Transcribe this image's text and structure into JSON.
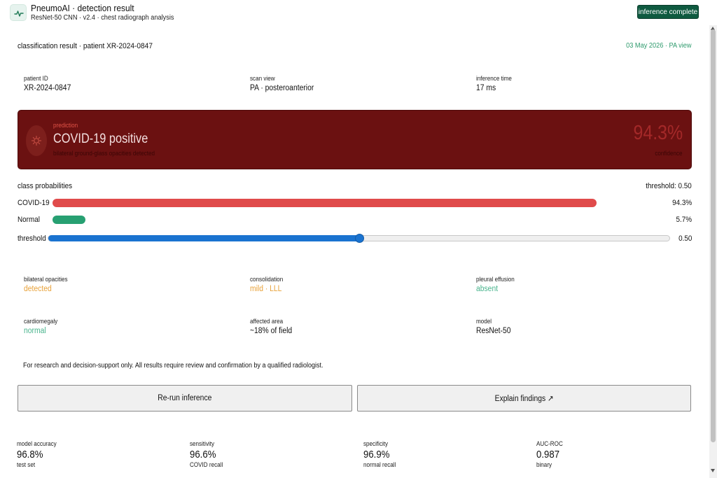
{
  "header": {
    "title": "PneumoAI · detection result",
    "subtitle": "ResNet-50 CNN · v2.4 · chest radiograph analysis",
    "status": "inference complete",
    "logo_icon": "pulse-icon"
  },
  "section": {
    "title": "classification result · patient XR-2024-0847",
    "date": "03 May 2026 · PA view"
  },
  "info": [
    {
      "label": "patient ID",
      "value": "XR-2024-0847"
    },
    {
      "label": "scan view",
      "value": "PA · posteroanterior"
    },
    {
      "label": "inference time",
      "value": "17 ms"
    }
  ],
  "prediction": {
    "label": "prediction",
    "value": "COVID-19 positive",
    "description": "bilateral ground-glass opacities detected",
    "confidence": "94.3%",
    "confidence_label": "confidence",
    "icon": "virus-icon"
  },
  "probabilities": {
    "title": "class probabilities",
    "threshold_label": "threshold: 0.50",
    "rows": [
      {
        "label": "COVID-19",
        "value": "94.3%",
        "fraction": 0.943,
        "color": "#e04b4b"
      },
      {
        "label": "Normal",
        "value": "5.7%",
        "fraction": 0.057,
        "color": "#27a072"
      }
    ],
    "slider": {
      "label": "threshold",
      "value": "0.50",
      "fraction": 0.5,
      "color": "#1a73d0"
    }
  },
  "findings": [
    {
      "label": "bilateral opacities",
      "value": "detected",
      "color": "#e8a23a"
    },
    {
      "label": "consolidation",
      "value": "mild · LLL",
      "color": "#e8a23a"
    },
    {
      "label": "pleural effusion",
      "value": "absent",
      "color": "#49b48d"
    },
    {
      "label": "cardiomegaly",
      "value": "normal",
      "color": "#49b48d"
    },
    {
      "label": "affected area",
      "value": "~18% of field",
      "color": "#111111"
    },
    {
      "label": "model",
      "value": "ResNet-50",
      "color": "#111111"
    }
  ],
  "disclaimer": "For research and decision-support only. All results require review and confirmation by a qualified radiologist.",
  "actions": {
    "rerun_label": "Re-run inference",
    "explain_label": "Explain findings ↗"
  },
  "metrics": [
    {
      "label": "model accuracy",
      "value": "96.8%",
      "sub": "test set"
    },
    {
      "label": "sensitivity",
      "value": "96.6%",
      "sub": "COVID recall"
    },
    {
      "label": "specificity",
      "value": "96.9%",
      "sub": "normal recall"
    },
    {
      "label": "AUC-ROC",
      "value": "0.987",
      "sub": "binary"
    }
  ]
}
